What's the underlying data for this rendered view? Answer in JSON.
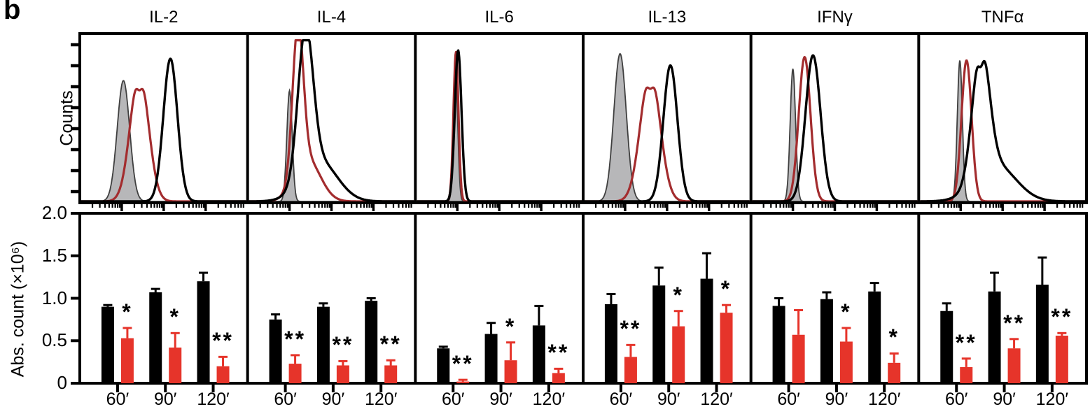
{
  "figure": {
    "panel_letter": "b"
  },
  "colors": {
    "black": "#000000",
    "red_bar": "#e6342a",
    "red_curve": "#a32c2e",
    "gray_fill": "#b7b7b9",
    "gray_stroke": "#3f3f3f"
  },
  "chart_data": [
    {
      "type": "line",
      "subtype": "flow-cytometry-histogram-overlay",
      "ylabel": "Counts",
      "x_axis": "log-scale intensity, unlabeled ticks",
      "series_legend": [
        "gray-filled",
        "red-outline",
        "black-outline"
      ],
      "panels": [
        {
          "title": "IL-2",
          "curves": [
            {
              "series": "gray-filled",
              "center": 0.26,
              "sigma": 0.037,
              "height": 0.72
            },
            {
              "series": "red-outline",
              "center": 0.355,
              "sigma": 0.054,
              "height": 0.77,
              "double_top": true
            },
            {
              "series": "black-outline",
              "center": 0.54,
              "sigma": 0.042,
              "height": 0.85
            }
          ]
        },
        {
          "title": "IL-4",
          "curves": [
            {
              "series": "gray-filled",
              "center": 0.25,
              "sigma": 0.016,
              "height": 0.66
            },
            {
              "series": "red-outline",
              "center": 0.3,
              "sigma": 0.032,
              "height": 0.88,
              "right_skew": true
            },
            {
              "series": "black-outline",
              "center": 0.345,
              "sigma": 0.045,
              "height": 0.86,
              "right_skew": true
            }
          ]
        },
        {
          "title": "IL-6",
          "curves": [
            {
              "series": "gray-filled",
              "center": 0.24,
              "sigma": 0.013,
              "height": 0.74
            },
            {
              "series": "red-outline",
              "center": 0.242,
              "sigma": 0.015,
              "height": 0.89
            },
            {
              "series": "black-outline",
              "center": 0.255,
              "sigma": 0.02,
              "height": 0.9
            }
          ]
        },
        {
          "title": "IL-13",
          "curves": [
            {
              "series": "gray-filled",
              "center": 0.22,
              "sigma": 0.037,
              "height": 0.88
            },
            {
              "series": "red-outline",
              "center": 0.4,
              "sigma": 0.058,
              "height": 0.78,
              "double_top": true
            },
            {
              "series": "black-outline",
              "center": 0.52,
              "sigma": 0.042,
              "height": 0.81
            }
          ]
        },
        {
          "title": "IFNγ",
          "curves": [
            {
              "series": "gray-filled",
              "center": 0.25,
              "sigma": 0.016,
              "height": 0.79
            },
            {
              "series": "red-outline",
              "center": 0.32,
              "sigma": 0.035,
              "height": 0.86
            },
            {
              "series": "black-outline",
              "center": 0.37,
              "sigma": 0.045,
              "height": 0.87
            }
          ]
        },
        {
          "title": "TNFα",
          "curves": [
            {
              "series": "gray-filled",
              "center": 0.245,
              "sigma": 0.015,
              "height": 0.84
            },
            {
              "series": "red-outline",
              "center": 0.285,
              "sigma": 0.03,
              "height": 0.84
            },
            {
              "series": "black-outline",
              "center": 0.37,
              "sigma": 0.05,
              "height": 0.77,
              "double_top": true,
              "right_skew": true
            }
          ]
        }
      ]
    },
    {
      "type": "bar",
      "ylabel": "Abs. count (×10⁶)",
      "ylim": [
        0,
        2.0
      ],
      "yticks": [
        0,
        0.5,
        1.0,
        1.5,
        2.0
      ],
      "ytick_labels": [
        "0",
        "0.5",
        "1.0",
        "1.5",
        "2.0"
      ],
      "categories": [
        "60′",
        "90′",
        "120′"
      ],
      "series_names": [
        "black",
        "red"
      ],
      "panels": [
        {
          "title": "IL-2",
          "black": [
            0.9,
            1.07,
            1.2
          ],
          "black_err": [
            0.02,
            0.04,
            0.1
          ],
          "red": [
            0.53,
            0.42,
            0.2
          ],
          "red_err": [
            0.12,
            0.17,
            0.11
          ],
          "sig": [
            "*",
            "*",
            "**"
          ]
        },
        {
          "title": "IL-4",
          "black": [
            0.75,
            0.9,
            0.97
          ],
          "black_err": [
            0.06,
            0.04,
            0.03
          ],
          "red": [
            0.23,
            0.21,
            0.21
          ],
          "red_err": [
            0.1,
            0.05,
            0.06
          ],
          "sig": [
            "**",
            "**",
            "**"
          ]
        },
        {
          "title": "IL-6",
          "black": [
            0.41,
            0.58,
            0.68
          ],
          "black_err": [
            0.02,
            0.13,
            0.23
          ],
          "red": [
            0.02,
            0.27,
            0.12
          ],
          "red_err": [
            0.02,
            0.21,
            0.05
          ],
          "sig": [
            "**",
            "*",
            "**"
          ]
        },
        {
          "title": "IL-13",
          "black": [
            0.93,
            1.15,
            1.23
          ],
          "black_err": [
            0.12,
            0.21,
            0.3
          ],
          "red": [
            0.31,
            0.67,
            0.83
          ],
          "red_err": [
            0.14,
            0.18,
            0.09
          ],
          "sig": [
            "**",
            "*",
            "*"
          ]
        },
        {
          "title": "IFNγ",
          "black": [
            0.91,
            0.99,
            1.08
          ],
          "black_err": [
            0.09,
            0.08,
            0.1
          ],
          "red": [
            0.57,
            0.49,
            0.24
          ],
          "red_err": [
            0.29,
            0.16,
            0.11
          ],
          "sig": [
            "",
            "*",
            "*"
          ]
        },
        {
          "title": "TNFα",
          "black": [
            0.85,
            1.08,
            1.16
          ],
          "black_err": [
            0.09,
            0.22,
            0.32
          ],
          "red": [
            0.19,
            0.41,
            0.56
          ],
          "red_err": [
            0.1,
            0.11,
            0.03
          ],
          "sig": [
            "**",
            "**",
            "**"
          ]
        }
      ]
    }
  ]
}
